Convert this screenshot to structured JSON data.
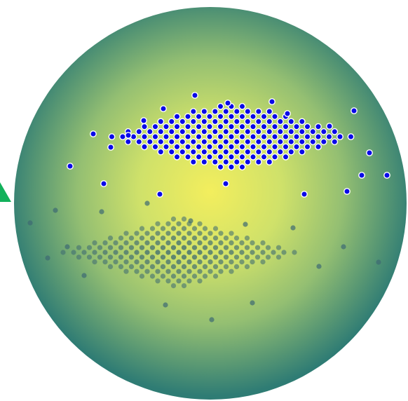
{
  "scene": {
    "sphere_colors": {
      "center": "#f3ee5d",
      "mid": "#b9cf6c",
      "edge": "#2f7c74"
    },
    "dot_fill": "#0a0ae8",
    "dot_stroke": "#ffffff",
    "shadow_dot_color": "#3d6a73",
    "marker_color": "#12b15b",
    "marker_icon": "triangle-icon"
  }
}
